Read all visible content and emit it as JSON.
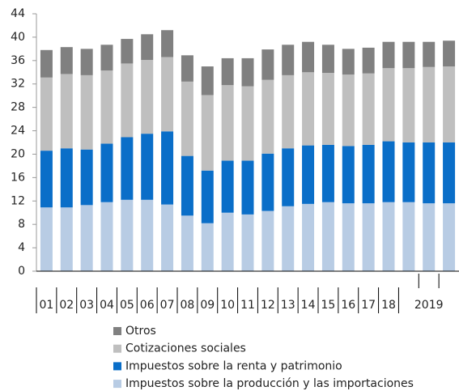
{
  "chart_data": {
    "type": "stacked_bar",
    "categories": [
      "01",
      "02",
      "03",
      "04",
      "05",
      "06",
      "07",
      "08",
      "09",
      "10",
      "11",
      "12",
      "13",
      "14",
      "15",
      "16",
      "17",
      "18",
      null,
      null,
      null
    ],
    "group_label": "2019",
    "series": [
      {
        "name": "Impuestos sobre la producción y las importaciones",
        "color": "#b8cce4",
        "values": [
          10.9,
          10.9,
          11.3,
          11.8,
          12.2,
          12.2,
          11.4,
          9.5,
          8.2,
          10.0,
          9.7,
          10.3,
          11.1,
          11.5,
          11.8,
          11.6,
          11.6,
          11.8,
          11.8,
          11.6,
          11.6
        ]
      },
      {
        "name": "Impuestos sobre la renta y patrimonio",
        "color": "#0a6ec8",
        "values": [
          9.7,
          10.1,
          9.5,
          10.0,
          10.7,
          11.3,
          12.5,
          10.2,
          9.0,
          8.9,
          9.2,
          9.8,
          9.9,
          10.0,
          9.8,
          9.8,
          10.0,
          10.4,
          10.2,
          10.4,
          10.4
        ]
      },
      {
        "name": "Cotizaciones sociales",
        "color": "#bfbfbf",
        "values": [
          12.5,
          12.7,
          12.7,
          12.5,
          12.6,
          12.6,
          12.7,
          12.7,
          12.9,
          12.9,
          12.7,
          12.6,
          12.5,
          12.5,
          12.3,
          12.2,
          12.2,
          12.5,
          12.7,
          12.9,
          13.0
        ]
      },
      {
        "name": "Otros",
        "color": "#808080",
        "values": [
          4.7,
          4.6,
          4.5,
          4.4,
          4.2,
          4.4,
          4.6,
          4.5,
          4.9,
          4.6,
          4.8,
          5.2,
          5.2,
          5.2,
          4.8,
          4.4,
          4.4,
          4.5,
          4.5,
          4.3,
          4.4
        ]
      }
    ],
    "ylim": [
      0,
      44
    ],
    "yticks": [
      0,
      4,
      8,
      12,
      16,
      20,
      24,
      28,
      32,
      36,
      40,
      44
    ],
    "grid": false,
    "legend_position": "bottom"
  }
}
